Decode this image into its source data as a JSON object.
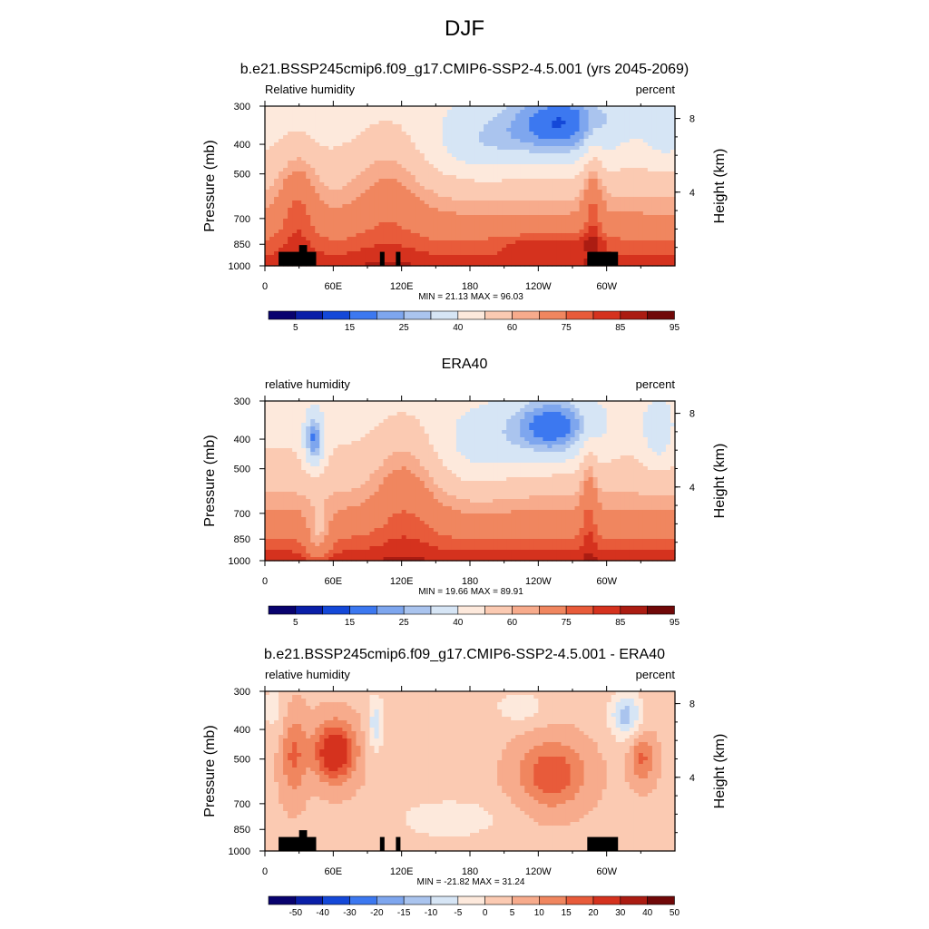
{
  "page": {
    "title": "DJF"
  },
  "colors": {
    "abs_scale": [
      "#08026e",
      "#0a1fa8",
      "#1448d8",
      "#3c78f0",
      "#7ea6ee",
      "#aac4ee",
      "#d6e5f5",
      "#fde9dc",
      "#fbcab2",
      "#f7ab8c",
      "#f0865f",
      "#e85b3a",
      "#d5321e",
      "#ab1c12",
      "#700808"
    ],
    "diff_scale": [
      "#08026e",
      "#0a1fa8",
      "#1448d8",
      "#3c78f0",
      "#7ea6ee",
      "#aac4ee",
      "#d6e5f5",
      "#fde9dc",
      "#fbcab2",
      "#f7ab8c",
      "#f0865f",
      "#e85b3a",
      "#d5321e",
      "#ab1c12",
      "#700808"
    ],
    "topography": "#000000"
  },
  "chart_data": [
    {
      "type": "heatmap",
      "title": "b.e21.BSSP245cmip6.f09_g17.CMIP6-SSP2-4.5.001 (yrs 2045-2069)",
      "variable_label": "Relative humidity",
      "units_label": "percent",
      "ylabel": "Pressure (mb)",
      "ylabel_right": "Height (km)",
      "x_ticks": [
        "0",
        "60E",
        "120E",
        "180",
        "120W",
        "60W"
      ],
      "x_tick_values": [
        0,
        60,
        120,
        180,
        240,
        300
      ],
      "xlim": [
        0,
        360
      ],
      "y_ticks": [
        "300",
        "400",
        "500",
        "700",
        "850",
        "1000"
      ],
      "y_tick_values": [
        300,
        400,
        500,
        700,
        850,
        1000
      ],
      "ylim": [
        300,
        1000
      ],
      "y_scale": "log",
      "right_ticks": [
        "8",
        "4"
      ],
      "right_tick_values": [
        8,
        4
      ],
      "minmax_text": "MIN =  21.13  MAX =  96.03",
      "colorbar_labels": [
        "5",
        "15",
        "25",
        "40",
        "60",
        "75",
        "85",
        "95"
      ],
      "colorbar_levels": [
        5,
        10,
        15,
        20,
        25,
        30,
        40,
        50,
        60,
        65,
        75,
        80,
        85,
        90,
        95
      ],
      "topography": true
    },
    {
      "type": "heatmap",
      "title": "ERA40",
      "variable_label": "relative humidity",
      "units_label": "percent",
      "ylabel": "Pressure (mb)",
      "ylabel_right": "Height (km)",
      "x_ticks": [
        "0",
        "60E",
        "120E",
        "180",
        "120W",
        "60W"
      ],
      "x_tick_values": [
        0,
        60,
        120,
        180,
        240,
        300
      ],
      "xlim": [
        0,
        360
      ],
      "y_ticks": [
        "300",
        "400",
        "500",
        "700",
        "850",
        "1000"
      ],
      "y_tick_values": [
        300,
        400,
        500,
        700,
        850,
        1000
      ],
      "ylim": [
        300,
        1000
      ],
      "y_scale": "log",
      "right_ticks": [
        "8",
        "4"
      ],
      "right_tick_values": [
        8,
        4
      ],
      "minmax_text": "MIN =  19.66  MAX =  89.91",
      "colorbar_labels": [
        "5",
        "15",
        "25",
        "40",
        "60",
        "75",
        "85",
        "95"
      ],
      "colorbar_levels": [
        5,
        10,
        15,
        20,
        25,
        30,
        40,
        50,
        60,
        65,
        75,
        80,
        85,
        90,
        95
      ],
      "topography": false
    },
    {
      "type": "heatmap",
      "title": "b.e21.BSSP245cmip6.f09_g17.CMIP6-SSP2-4.5.001 - ERA40",
      "variable_label": "relative humidity",
      "units_label": "percent",
      "ylabel": "Pressure (mb)",
      "ylabel_right": "Height (km)",
      "x_ticks": [
        "0",
        "60E",
        "120E",
        "180",
        "120W",
        "60W"
      ],
      "x_tick_values": [
        0,
        60,
        120,
        180,
        240,
        300
      ],
      "xlim": [
        0,
        360
      ],
      "y_ticks": [
        "300",
        "400",
        "500",
        "700",
        "850",
        "1000"
      ],
      "y_tick_values": [
        300,
        400,
        500,
        700,
        850,
        1000
      ],
      "ylim": [
        300,
        1000
      ],
      "y_scale": "log",
      "right_ticks": [
        "8",
        "4"
      ],
      "right_tick_values": [
        8,
        4
      ],
      "minmax_text": "MIN = -21.82  MAX =  31.24",
      "colorbar_labels": [
        "-50",
        "-40",
        "-30",
        "-20",
        "-15",
        "-10",
        "-5",
        "0",
        "5",
        "10",
        "15",
        "20",
        "30",
        "40",
        "50"
      ],
      "colorbar_levels": [
        -50,
        -40,
        -30,
        -20,
        -15,
        -10,
        -5,
        0,
        5,
        10,
        15,
        20,
        30,
        40,
        50
      ],
      "topography": true
    }
  ]
}
